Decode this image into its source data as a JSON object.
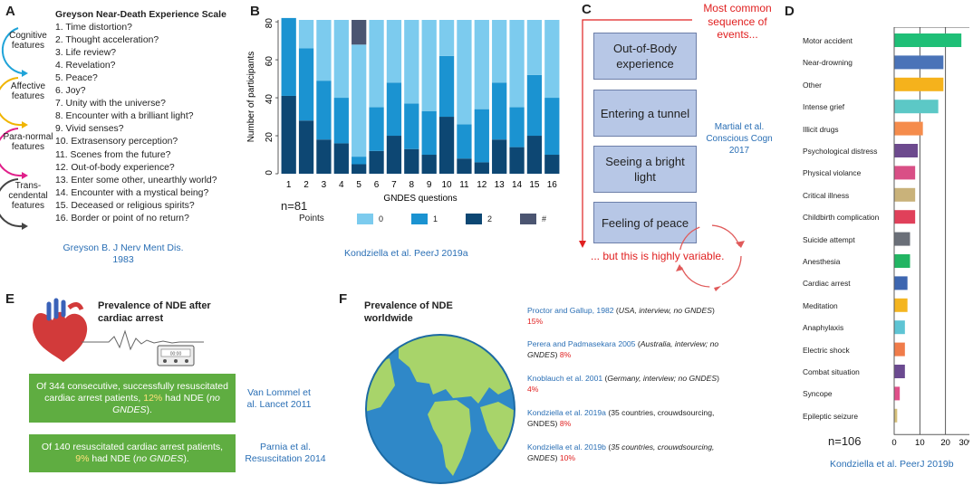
{
  "panelA": {
    "label": "A",
    "title": "Greyson Near-Death Experience Scale",
    "items": [
      "1. Time distortion?",
      "2. Thought acceleration?",
      "3. Life review?",
      "4. Revelation?",
      "5. Peace?",
      "6. Joy?",
      "7. Unity with the universe?",
      "8. Encounter with a brilliant light?",
      "9. Vivid senses?",
      "10. Extrasensory perception?",
      "11. Scenes from the future?",
      "12. Out-of-body experience?",
      "13. Enter some other, unearthly world?",
      "14. Encounter with a mystical being?",
      "15. Deceased or religious spirits?",
      "16. Border or point of no return?"
    ],
    "features": [
      "Cognitive features",
      "Affective features",
      "Para-normal features",
      "Trans-cendental features"
    ],
    "feature_colors": [
      "#1fa3d8",
      "#f0b400",
      "#e0208a",
      "#444444"
    ],
    "citation": "Greyson B. J Nerv Ment Dis. 1983"
  },
  "panelB": {
    "label": "B",
    "n_label": "n=81",
    "citation": "Kondziella et al. PeerJ 2019a"
  },
  "panelC": {
    "label": "C",
    "header": "Most common sequence of events...",
    "boxes": [
      "Out-of-Body experience",
      "Entering a tunnel",
      "Seeing a bright light",
      "Feeling of peace"
    ],
    "citation": "Martial et al. Conscious Cogn 2017",
    "footer": "... but this is highly variable."
  },
  "panelD": {
    "label": "D",
    "n_label": "n=106",
    "citation": "Kondziella et al. PeerJ 2019b"
  },
  "panelE": {
    "label": "E",
    "title": "Prevalence of NDE after cardiac arrest",
    "monitor_text": "00:00",
    "box1_pre": "Of 344 consecutive, successfully resuscitated cardiac arrest patients, ",
    "box1_pct": "12%",
    "box1_mid": " had NDE (",
    "box1_em": "no GNDES",
    "box1_post": ").",
    "box1_cite": "Van Lommel et al. Lancet 2011",
    "box2_pre": "Of 140 resuscitated cardiac arrest patients, ",
    "box2_pct": "9%",
    "box2_mid": " had NDE (",
    "box2_em": "no GNDES",
    "box2_post": ").",
    "box2_cite": "Parnia et al. Resuscitation 2014"
  },
  "panelF": {
    "label": "F",
    "title": "Prevalence of NDE worldwide",
    "refs": [
      {
        "src": "Proctor and Gallup, 1982",
        "pre": " (",
        "em": "USA, interview, no GNDES",
        "post": ") ",
        "pct": "15%"
      },
      {
        "src": "Perera and Padmasekara 2005",
        "pre": " (",
        "em": "Australia, interview; no GNDES",
        "post": ") ",
        "pct": "8%"
      },
      {
        "src": "Knoblauch et al. 2001",
        "pre": " (",
        "em": "Germany, interview; no GNDES",
        "post": ") ",
        "pct": "4%"
      },
      {
        "src": "Kondziella et al. 2019a",
        "pre": " (35 countries, crouwdsourcing, GNDES) ",
        "em": "",
        "post": "",
        "pct": "8%"
      },
      {
        "src": "Kondziella et al. 2019b",
        "pre": " (",
        "em": "35 countries, crouwdsourcing, GNDES",
        "post": ") ",
        "pct": "10%"
      }
    ]
  },
  "chart_data": [
    {
      "type": "bar",
      "stacked": true,
      "title": "",
      "xlabel": "GNDES questions",
      "ylabel": "Number of participants",
      "categories": [
        "1",
        "2",
        "3",
        "4",
        "5",
        "6",
        "7",
        "8",
        "9",
        "10",
        "11",
        "12",
        "13",
        "14",
        "15",
        "16"
      ],
      "ylim": [
        0,
        81
      ],
      "yticks": [
        0,
        20,
        40,
        60,
        80
      ],
      "legend_title": "Points",
      "series": [
        {
          "name": "2",
          "color": "#0d4773",
          "values": [
            41,
            28,
            18,
            16,
            5,
            12,
            20,
            13,
            10,
            30,
            8,
            6,
            18,
            14,
            20,
            10
          ]
        },
        {
          "name": "1",
          "color": "#1b93d1",
          "values": [
            41,
            38,
            31,
            24,
            4,
            23,
            28,
            24,
            23,
            32,
            18,
            28,
            30,
            21,
            32,
            30
          ]
        },
        {
          "name": "0",
          "color": "#7ccbee",
          "values": [
            0,
            15,
            32,
            41,
            59,
            46,
            33,
            44,
            48,
            19,
            55,
            47,
            33,
            46,
            29,
            41
          ]
        },
        {
          "name": "#",
          "color": "#4b5571",
          "values": [
            0,
            0,
            0,
            0,
            13,
            0,
            0,
            0,
            0,
            0,
            0,
            0,
            0,
            0,
            0,
            0
          ]
        }
      ]
    },
    {
      "type": "bar",
      "orientation": "horizontal",
      "title": "",
      "categories": [
        "Motor accident",
        "Near-drowning",
        "Other",
        "Intense grief",
        "Illicit drugs",
        "Psychological distress",
        "Physical violance",
        "Critical illness",
        "Childbirth complication",
        "Suicide attempt",
        "Anesthesia",
        "Cardiac arrest",
        "Meditation",
        "Anaphylaxis",
        "Electric shock",
        "Combat situation",
        "Syncope",
        "Epileptic seizure"
      ],
      "values": [
        26,
        19,
        19,
        17,
        11,
        9,
        8,
        8,
        8,
        6,
        6,
        5,
        5,
        4,
        4,
        4,
        2,
        1
      ],
      "colors": [
        "#1fbf77",
        "#4a73b8",
        "#f5b21c",
        "#5cc8c6",
        "#f58c4c",
        "#6d4a8e",
        "#d94f86",
        "#c9b27a",
        "#e0405a",
        "#6a6f78",
        "#22b563",
        "#3d66b0",
        "#f4b520",
        "#5ec4d4",
        "#f07c4a",
        "#6b4a90",
        "#e0508a",
        "#d6c07a"
      ],
      "xticks": [
        "0",
        "10",
        "20",
        "30%"
      ],
      "xlim": [
        0,
        30
      ]
    }
  ]
}
